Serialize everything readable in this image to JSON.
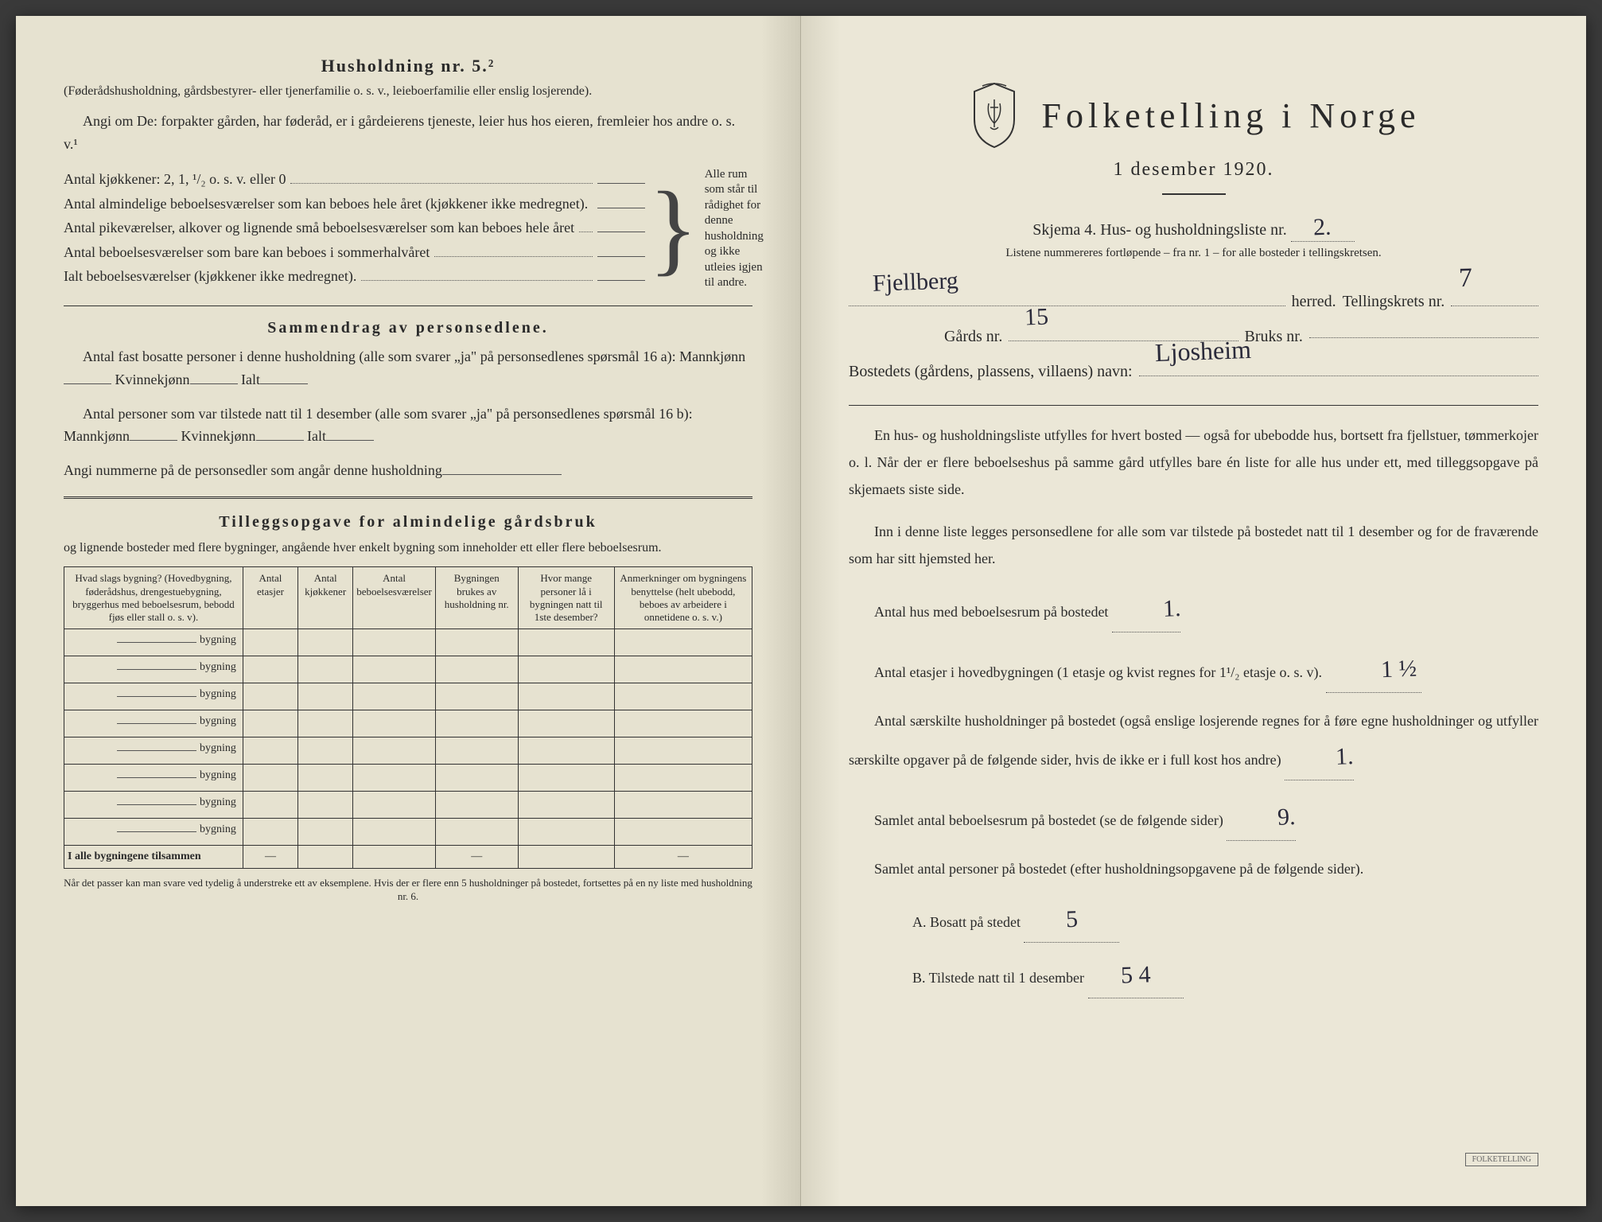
{
  "left": {
    "heading": "Husholdning nr. 5.²",
    "heading_note": "(Føderådshusholdning, gårdsbestyrer- eller tjenerfamilie o. s. v., leieboerfamilie eller enslig losjerende).",
    "angi_text": "Angi om De: forpakter gården, har føderåd, er i gårdeierens tjeneste, leier hus hos eieren, fremleier hos andre o. s. v.¹",
    "rows": [
      "Antal kjøkkener: 2, 1, ¹/₂ o. s. v. eller 0",
      "Antal almindelige beboelsesværelser som kan beboes hele året (kjøkkener ikke medregnet).",
      "Antal pikeværelser, alkover og lignende små beboelsesværelser som kan beboes hele året",
      "Antal beboelsesværelser som bare kan beboes i sommerhalvåret",
      "Ialt beboelsesværelser (kjøkkener ikke medregnet)."
    ],
    "brace_text": "Alle rum som står til rådighet for denne husholdning og ikke utleies igjen til andre.",
    "sammendrag_title": "Sammendrag av personsedlene.",
    "sammendrag_p1_a": "Antal fast bosatte personer i denne husholdning (alle som svarer „ja\" på personsedlenes spørsmål 16 a): Mannkjønn",
    "sammendrag_p1_b": "Kvinnekjønn",
    "sammendrag_p1_c": "Ialt",
    "sammendrag_p2_a": "Antal personer som var tilstede natt til 1 desember (alle som svarer „ja\" på personsedlenes spørsmål 16 b): Mannkjønn",
    "sammendrag_p3": "Angi nummerne på de personsedler som angår denne husholdning",
    "tillegg_title": "Tilleggsopgave for almindelige gårdsbruk",
    "tillegg_sub": "og lignende bosteder med flere bygninger, angående hver enkelt bygning som inneholder ett eller flere beboelsesrum.",
    "table_headers": [
      "Hvad slags bygning?\n(Hovedbygning, føderådshus, drengestuebygning, bryggerhus med beboelsesrum, bebodd fjøs eller stall o. s. v).",
      "Antal etasjer",
      "Antal kjøkkener",
      "Antal beboelsesværelser",
      "Bygningen brukes av husholdning nr.",
      "Hvor mange personer lå i bygningen natt til 1ste desember?",
      "Anmerkninger om bygningens benyttelse (helt ubebodd, beboes av arbeidere i onnetidene o. s. v.)"
    ],
    "bygning_label": "bygning",
    "bygning_rows": 8,
    "total_row": "I alle bygningene tilsammen",
    "footnote": "Når det passer kan man svare ved tydelig å understreke ett av eksemplene.\nHvis der er flere enn 5 husholdninger på bostedet, fortsettes på en ny liste med husholdning nr. 6."
  },
  "right": {
    "main_title": "Folketelling i Norge",
    "subtitle": "1 desember 1920.",
    "form_line_a": "Skjema 4. Hus- og husholdningsliste nr.",
    "form_nr": "2.",
    "form_subline": "Listene nummereres fortløpende – fra nr. 1 – for alle bosteder i tellingskretsen.",
    "herred_value": "Fjellberg",
    "herred_label": "herred.",
    "tellingskrets_label": "Tellingskrets nr.",
    "tellingskrets_value": "7",
    "gards_label": "Gårds nr.",
    "gards_value": "15",
    "bruks_label": "Bruks nr.",
    "bruks_value": "",
    "bosted_label": "Bostedets (gårdens, plassens, villaens) navn:",
    "bosted_value": "Ljosheim",
    "para1": "En hus- og husholdningsliste utfylles for hvert bosted — også for ubebodde hus, bortsett fra fjellstuer, tømmerkojer o. l. Når der er flere beboelseshus på samme gård utfylles bare én liste for alle hus under ett, med tilleggsopgave på skjemaets siste side.",
    "para2": "Inn i denne liste legges personsedlene for alle som var tilstede på bostedet natt til 1 desember og for de fraværende som har sitt hjemsted her.",
    "q1_label": "Antal hus med beboelsesrum på bostedet",
    "q1_value": "1.",
    "q2_label_a": "Antal etasjer i hovedbygningen (1 etasje og kvist regnes for 1¹/₂ etasje o. s. v).",
    "q2_value": "1 ½",
    "q3_label": "Antal særskilte husholdninger på bostedet (også enslige losjerende regnes for å føre egne husholdninger og utfyller særskilte opgaver på de følgende sider, hvis de ikke er i full kost hos andre)",
    "q3_value": "1.",
    "q4_label": "Samlet antal beboelsesrum på bostedet (se de følgende sider)",
    "q4_value": "9.",
    "q5_label": "Samlet antal personer på bostedet (efter husholdningsopgavene på de følgende sider).",
    "qA_label": "A. Bosatt på stedet",
    "qA_value": "5",
    "qB_label": "B. Tilstede natt til 1 desember",
    "qB_value": "5 4",
    "stamp": "FOLKETELLING"
  }
}
